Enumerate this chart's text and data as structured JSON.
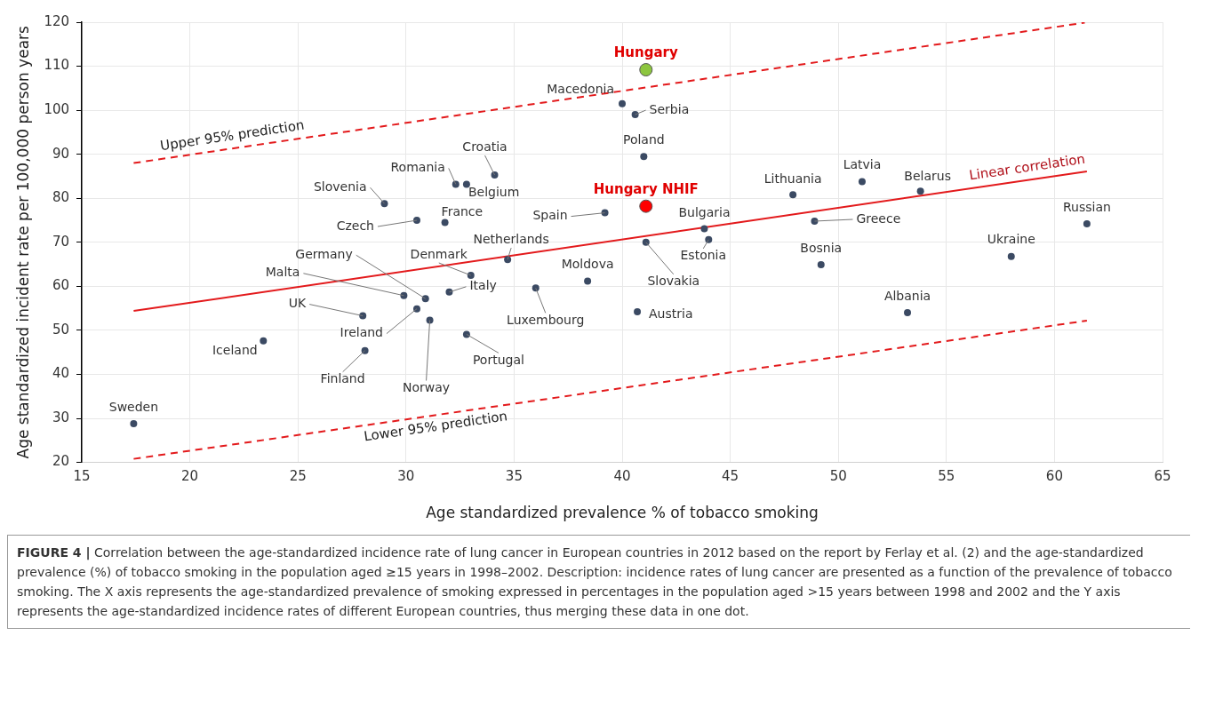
{
  "chart_data": {
    "type": "scatter",
    "xlabel": "Age standardized prevalence % of tobacco smoking",
    "ylabel": "Age standardized incident rate per 100,000 person years",
    "xlim": [
      15,
      65
    ],
    "xticks": [
      15,
      20,
      25,
      30,
      35,
      40,
      45,
      50,
      55,
      60,
      65
    ],
    "ylim": [
      20,
      120
    ],
    "yticks": [
      20,
      30,
      40,
      50,
      60,
      70,
      80,
      90,
      100,
      110,
      120
    ],
    "grid": true,
    "legend": false,
    "marker": "circle",
    "series": [
      {
        "color": "#3b4a63",
        "x": [
          40.0,
          40.6,
          41.0,
          34.1,
          32.3,
          32.8,
          29.0,
          30.5,
          31.8,
          39.2,
          47.9,
          51.1,
          53.8,
          61.5,
          48.9,
          43.8,
          44.0,
          41.1,
          34.7,
          33.0,
          38.4,
          32.0,
          36.0,
          30.9,
          29.9,
          28.0,
          30.5,
          31.1,
          40.7,
          32.8,
          23.4,
          28.1,
          17.4,
          49.2,
          58.0,
          53.2
        ],
        "values": [
          101.5,
          99.0,
          89.5,
          85.3,
          83.2,
          83.2,
          78.8,
          75.0,
          74.5,
          76.7,
          80.8,
          83.8,
          81.6,
          74.2,
          74.8,
          73.1,
          70.6,
          70.0,
          66.1,
          62.5,
          61.2,
          58.7,
          59.6,
          57.2,
          57.9,
          53.3,
          54.9,
          52.3,
          54.2,
          49.1,
          47.6,
          45.4,
          28.8,
          64.9,
          66.8,
          54.0
        ]
      },
      {
        "color": "#8dc63f",
        "x": [
          41.1
        ],
        "values": [
          109.2
        ]
      },
      {
        "color": "#ff0000",
        "x": [
          41.1
        ],
        "values": [
          78.2
        ]
      },
      {
        "type": "line",
        "name": "Upper 95% prediction",
        "color": "#e31a1c",
        "line_style": "dashed",
        "marker": "none",
        "x": [
          17.4,
          61.4
        ],
        "values": [
          88.0,
          119.9
        ]
      },
      {
        "type": "line",
        "name": "Linear correlation",
        "color": "#e31a1c",
        "line_style": "solid",
        "marker": "none",
        "x": [
          17.4,
          61.5
        ],
        "values": [
          54.4,
          86.1
        ]
      },
      {
        "type": "line",
        "name": "Lower 95% prediction",
        "color": "#e31a1c",
        "line_style": "dashed",
        "marker": "none",
        "x": [
          17.4,
          61.5
        ],
        "values": [
          20.8,
          52.2
        ]
      }
    ],
    "annotations": [
      {
        "text": "Macedonia",
        "x": 40.0,
        "y": 101.5
      },
      {
        "text": "Serbia",
        "x": 40.6,
        "y": 99.0
      },
      {
        "text": "Poland",
        "x": 41.0,
        "y": 89.5
      },
      {
        "text": "Croatia",
        "x": 34.1,
        "y": 85.3
      },
      {
        "text": "Romania",
        "x": 32.3,
        "y": 83.2
      },
      {
        "text": "Belgium",
        "x": 32.8,
        "y": 83.2
      },
      {
        "text": "Slovenia",
        "x": 29.0,
        "y": 78.8
      },
      {
        "text": "Czech",
        "x": 30.5,
        "y": 75.0
      },
      {
        "text": "France",
        "x": 31.8,
        "y": 74.5
      },
      {
        "text": "Spain",
        "x": 39.2,
        "y": 76.7
      },
      {
        "text": "Lithuania",
        "x": 47.9,
        "y": 80.8
      },
      {
        "text": "Latvia",
        "x": 51.1,
        "y": 83.8
      },
      {
        "text": "Belarus",
        "x": 53.8,
        "y": 81.6
      },
      {
        "text": "Russian",
        "x": 61.5,
        "y": 74.2
      },
      {
        "text": "Greece",
        "x": 48.9,
        "y": 74.8
      },
      {
        "text": "Bulgaria",
        "x": 43.8,
        "y": 73.1
      },
      {
        "text": "Estonia",
        "x": 44.0,
        "y": 70.6
      },
      {
        "text": "Slovakia",
        "x": 41.1,
        "y": 70.0
      },
      {
        "text": "Netherlands",
        "x": 34.7,
        "y": 66.1
      },
      {
        "text": "Denmark",
        "x": 33.0,
        "y": 62.5
      },
      {
        "text": "Moldova",
        "x": 38.4,
        "y": 61.2
      },
      {
        "text": "Italy",
        "x": 32.0,
        "y": 58.7
      },
      {
        "text": "Luxembourg",
        "x": 36.0,
        "y": 59.6
      },
      {
        "text": "Germany",
        "x": 30.9,
        "y": 57.2
      },
      {
        "text": "Malta",
        "x": 29.9,
        "y": 57.9
      },
      {
        "text": "UK",
        "x": 28.0,
        "y": 53.3
      },
      {
        "text": "Ireland",
        "x": 30.5,
        "y": 54.9
      },
      {
        "text": "Norway",
        "x": 31.1,
        "y": 52.3
      },
      {
        "text": "Austria",
        "x": 40.7,
        "y": 54.2
      },
      {
        "text": "Portugal",
        "x": 32.8,
        "y": 49.1
      },
      {
        "text": "Iceland",
        "x": 23.4,
        "y": 47.6
      },
      {
        "text": "Finland",
        "x": 28.1,
        "y": 45.4
      },
      {
        "text": "Sweden",
        "x": 17.4,
        "y": 28.8
      },
      {
        "text": "Bosnia",
        "x": 49.2,
        "y": 64.9
      },
      {
        "text": "Ukraine",
        "x": 58.0,
        "y": 66.8
      },
      {
        "text": "Albania",
        "x": 53.2,
        "y": 54.0
      },
      {
        "text": "Hungary",
        "x": 41.1,
        "y": 109.2
      },
      {
        "text": "Hungary NHIF",
        "x": 41.1,
        "y": 78.2
      },
      "FIGURE 4 | Correlation between the age-standardized incidence rate of lung cancer in European countries in 2012 based on the report by Ferlay et al. (2) and the age-standardized prevalence (%) of tobacco smoking in the population aged ≥15 years in 1998–2002. Description: incidence rates of lung cancer are presented as a function of the prevalence of tobacco smoking. The X axis represents the age-standardized prevalence of smoking expressed in percentages in the population aged >15 years between 1998 and 2002 and the Y axis represents the age-standardized incidence rates of different European countries, thus merging these data in one dot."
    ]
  }
}
